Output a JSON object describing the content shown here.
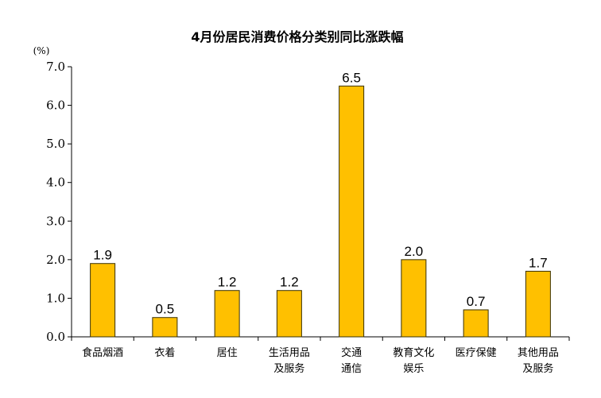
{
  "chart_data": {
    "type": "bar",
    "title": "4月份居民消费价格分类别同比涨跌幅",
    "unit_label": "(%)",
    "categories": [
      [
        "食品烟酒"
      ],
      [
        "衣着"
      ],
      [
        "居住"
      ],
      [
        "生活用品",
        "及服务"
      ],
      [
        "交通",
        "通信"
      ],
      [
        "教育文化",
        "娱乐"
      ],
      [
        "医疗保健"
      ],
      [
        "其他用品",
        "及服务"
      ]
    ],
    "values": [
      1.9,
      0.5,
      1.2,
      1.2,
      6.5,
      2.0,
      0.7,
      1.7
    ],
    "value_labels": [
      "1.9",
      "0.5",
      "1.2",
      "1.2",
      "6.5",
      "2.0",
      "0.7",
      "1.7"
    ],
    "ylim": [
      0,
      7
    ],
    "yticks": [
      0,
      1,
      2,
      3,
      4,
      5,
      6,
      7
    ],
    "ytick_labels": [
      "0.0",
      "1.0",
      "2.0",
      "3.0",
      "4.0",
      "5.0",
      "6.0",
      "7.0"
    ],
    "grid": false,
    "legend": "none",
    "bar_color": "#FFC000",
    "bar_edge_color": "#3A3000"
  }
}
